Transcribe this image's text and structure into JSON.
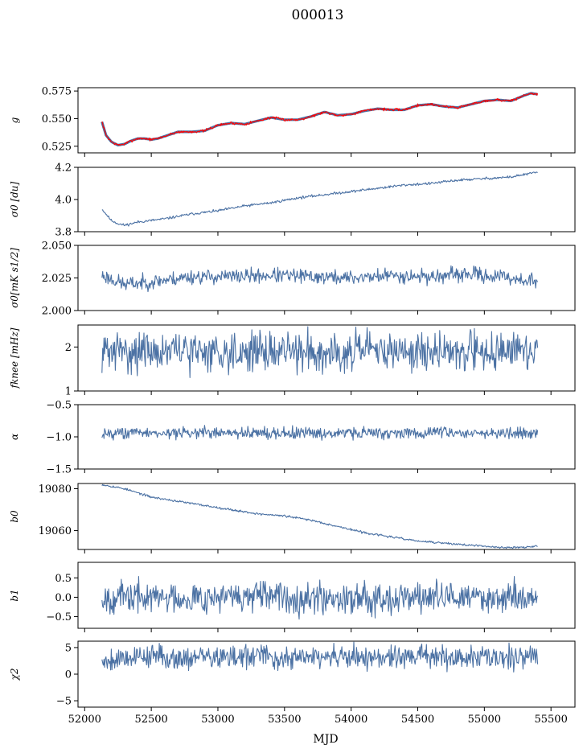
{
  "figure": {
    "title": "000013",
    "xlabel": "MJD"
  },
  "chart_data": {
    "type": "line",
    "title": "000013",
    "xlabel": "MJD",
    "xlim": [
      51950,
      55680
    ],
    "xticks": [
      52000,
      52500,
      53000,
      53500,
      54000,
      54500,
      55000,
      55500
    ],
    "x_range_of_data": [
      52130,
      55400
    ],
    "grid": false,
    "series_color": "#4c72a4",
    "overlay_color": "#ff0000",
    "panels": [
      {
        "ylabel": "g",
        "ylim": [
          0.519,
          0.578
        ],
        "yticks": [
          0.525,
          0.55,
          0.575
        ],
        "ytick_labels": [
          "0.525",
          "0.550",
          "0.575"
        ],
        "series": [
          {
            "kind": "smooth",
            "x": [
              52130,
              52160,
              52200,
              52250,
              52300,
              52350,
              52400,
              52450,
              52500,
              52550,
              52600,
              52700,
              52800,
              52900,
              53000,
              53100,
              53200,
              53300,
              53400,
              53500,
              53600,
              53700,
              53800,
              53900,
              54000,
              54100,
              54200,
              54300,
              54400,
              54500,
              54600,
              54700,
              54800,
              54900,
              55000,
              55100,
              55200,
              55300,
              55350,
              55400
            ],
            "y": [
              0.547,
              0.535,
              0.529,
              0.526,
              0.527,
              0.53,
              0.532,
              0.532,
              0.531,
              0.532,
              0.534,
              0.538,
              0.538,
              0.539,
              0.544,
              0.546,
              0.545,
              0.548,
              0.551,
              0.549,
              0.549,
              0.552,
              0.556,
              0.553,
              0.554,
              0.557,
              0.559,
              0.558,
              0.558,
              0.562,
              0.563,
              0.561,
              0.56,
              0.563,
              0.566,
              0.567,
              0.566,
              0.571,
              0.573,
              0.572
            ]
          },
          {
            "kind": "noisy",
            "color": "#ff0000",
            "amp": 0.0006,
            "seed": 7,
            "x": [
              52130,
              52160,
              52200,
              52250,
              52300,
              52350,
              52400,
              52450,
              52500,
              52550,
              52600,
              52700,
              52800,
              52900,
              53000,
              53100,
              53200,
              53300,
              53400,
              53500,
              53600,
              53700,
              53800,
              53900,
              54000,
              54100,
              54200,
              54300,
              54400,
              54500,
              54600,
              54700,
              54800,
              54900,
              55000,
              55100,
              55200,
              55300,
              55350,
              55400
            ],
            "y": [
              0.547,
              0.535,
              0.529,
              0.526,
              0.527,
              0.53,
              0.532,
              0.532,
              0.531,
              0.532,
              0.534,
              0.538,
              0.538,
              0.539,
              0.544,
              0.546,
              0.545,
              0.548,
              0.551,
              0.549,
              0.549,
              0.552,
              0.556,
              0.553,
              0.554,
              0.557,
              0.559,
              0.558,
              0.558,
              0.562,
              0.563,
              0.561,
              0.56,
              0.563,
              0.566,
              0.567,
              0.566,
              0.571,
              0.573,
              0.572
            ]
          }
        ]
      },
      {
        "ylabel": "σ0 [du]",
        "ylim": [
          3.8,
          4.2
        ],
        "yticks": [
          3.8,
          4.0,
          4.2
        ],
        "ytick_labels": [
          "3.8",
          "4.0",
          "4.2"
        ],
        "series": [
          {
            "kind": "noisy",
            "amp": 0.004,
            "seed": 11,
            "x": [
              52130,
              52200,
              52250,
              52300,
              52400,
              52500,
              52600,
              52800,
              53000,
              53200,
              53400,
              53600,
              53800,
              54000,
              54200,
              54400,
              54600,
              54800,
              55000,
              55200,
              55400
            ],
            "y": [
              3.94,
              3.87,
              3.85,
              3.84,
              3.86,
              3.87,
              3.88,
              3.91,
              3.93,
              3.96,
              3.98,
              4.01,
              4.03,
              4.05,
              4.07,
              4.09,
              4.1,
              4.12,
              4.13,
              4.14,
              4.17
            ]
          }
        ]
      },
      {
        "ylabel": "σ0[mK s1/2]",
        "ylim": [
          2.0,
          2.05
        ],
        "yticks": [
          2.0,
          2.025,
          2.05
        ],
        "ytick_labels": [
          "2.000",
          "2.025",
          "2.050"
        ],
        "series": [
          {
            "kind": "noisy",
            "amp": 0.0028,
            "seed": 23,
            "x": [
              52130,
              52300,
              52500,
              52800,
              53100,
              53400,
              53700,
              54000,
              54300,
              54600,
              54900,
              55200,
              55400
            ],
            "y": [
              2.027,
              2.02,
              2.022,
              2.026,
              2.026,
              2.027,
              2.026,
              2.025,
              2.027,
              2.026,
              2.028,
              2.025,
              2.022
            ]
          }
        ]
      },
      {
        "ylabel": "fknee [mHz]",
        "ylim": [
          1.0,
          2.5
        ],
        "yticks": [
          1,
          2
        ],
        "ytick_labels": [
          "1",
          "2"
        ],
        "series": [
          {
            "kind": "noisy",
            "amp": 0.22,
            "seed": 31,
            "x": [
              52130,
              55400
            ],
            "y": [
              1.9,
              1.9
            ]
          }
        ]
      },
      {
        "ylabel": "α",
        "ylim": [
          -1.5,
          -0.5
        ],
        "yticks": [
          -1.5,
          -1.0,
          -0.5
        ],
        "ytick_labels": [
          "−1.5",
          "−1.0",
          "−0.5"
        ],
        "series": [
          {
            "kind": "noisy",
            "amp": 0.045,
            "seed": 43,
            "x": [
              52130,
              55400
            ],
            "y": [
              -0.94,
              -0.94
            ]
          }
        ]
      },
      {
        "ylabel": "b0",
        "ylim": [
          19051,
          19082.5
        ],
        "yticks": [
          19060,
          19080
        ],
        "ytick_labels": [
          "19060",
          "19080"
        ],
        "series": [
          {
            "kind": "noisy",
            "amp": 0.25,
            "seed": 53,
            "x": [
              52130,
              52300,
              52500,
              52700,
              52900,
              53100,
              53300,
              53500,
              53700,
              53900,
              54100,
              54300,
              54500,
              54700,
              54900,
              55100,
              55300,
              55400
            ],
            "y": [
              19082,
              19080,
              19076,
              19074,
              19072,
              19070,
              19068,
              19067,
              19065,
              19062,
              19059,
              19057,
              19055,
              19054,
              19053,
              19052,
              19052,
              19052.5
            ]
          }
        ]
      },
      {
        "ylabel": "b1",
        "ylim": [
          -0.8,
          0.9
        ],
        "yticks": [
          -0.5,
          0.0,
          0.5
        ],
        "ytick_labels": [
          "−0.5",
          "0.0",
          "0.5"
        ],
        "series": [
          {
            "kind": "noisy",
            "amp": 0.2,
            "seed": 67,
            "x": [
              52130,
              55400
            ],
            "y": [
              0.0,
              0.0
            ]
          }
        ]
      },
      {
        "ylabel": "χ2",
        "ylim": [
          -6.2,
          6.2
        ],
        "yticks": [
          -5,
          0,
          5
        ],
        "ytick_labels": [
          "−5",
          "0",
          "5"
        ],
        "series": [
          {
            "kind": "noisy",
            "amp": 1.1,
            "seed": 79,
            "x": [
              52130,
              52300,
              52500,
              52700,
              52900,
              53100,
              53300,
              53500,
              53700,
              53900,
              54100,
              54300,
              54500,
              54700,
              54900,
              55100,
              55300,
              55400
            ],
            "y": [
              2.5,
              3.2,
              3.5,
              3.0,
              3.3,
              3.0,
              3.5,
              2.8,
              3.3,
              3.0,
              3.2,
              3.0,
              3.5,
              3.1,
              3.3,
              3.0,
              3.6,
              3.2
            ]
          }
        ]
      }
    ]
  }
}
